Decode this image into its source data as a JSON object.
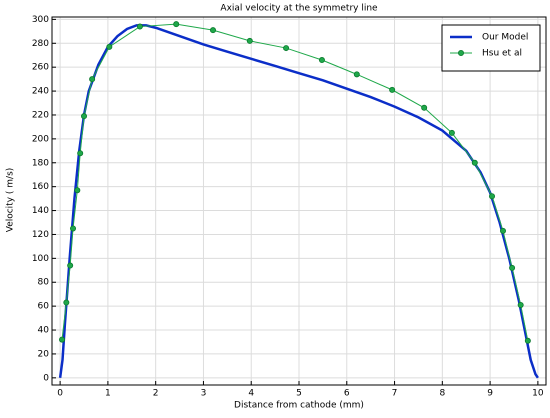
{
  "chart_data": {
    "type": "line",
    "title": "Axial velocity at the symmetry line",
    "x_label": "Distance from cathode (mm)",
    "y_label": "Velocity ( m/s)",
    "xlim": [
      -0.17,
      10.17
    ],
    "ylim": [
      -6,
      302
    ],
    "xticks": [
      0,
      1,
      2,
      3,
      4,
      5,
      6,
      7,
      8,
      9,
      10
    ],
    "yticks": [
      0,
      20,
      40,
      60,
      80,
      100,
      120,
      140,
      160,
      180,
      200,
      220,
      240,
      260,
      280,
      300
    ],
    "grid": true,
    "legend": "top-right",
    "series": [
      {
        "name": "Our Model",
        "color": "#0b2ec8",
        "markers": false,
        "x": [
          0,
          0.05,
          0.1,
          0.2,
          0.3,
          0.4,
          0.5,
          0.6,
          0.8,
          1.0,
          1.2,
          1.4,
          1.6,
          1.8,
          2.0,
          2.5,
          3,
          3.5,
          4,
          4.5,
          5,
          5.5,
          6,
          6.5,
          7,
          7.5,
          8,
          8.5,
          8.8,
          9,
          9.2,
          9.4,
          9.6,
          9.75,
          9.85,
          9.95,
          10
        ],
        "values": [
          0,
          15,
          45,
          100,
          150,
          190,
          220,
          240,
          262,
          277,
          286,
          292,
          295,
          295,
          293,
          286,
          279,
          273,
          267,
          261,
          255,
          249,
          242,
          235,
          227,
          218,
          207,
          190,
          172,
          155,
          130,
          100,
          65,
          35,
          15,
          3,
          0
        ]
      },
      {
        "name": "Hsu et al",
        "color": "#1fa84a",
        "markers": true,
        "x": [
          0.04,
          0.13,
          0.21,
          0.27,
          0.36,
          0.42,
          0.5,
          0.67,
          1.03,
          1.67,
          2.43,
          3.2,
          3.97,
          4.73,
          5.48,
          6.21,
          6.95,
          7.62,
          8.2,
          8.68,
          9.04,
          9.27,
          9.46,
          9.64,
          9.79
        ],
        "values": [
          32,
          63,
          94,
          125,
          157,
          188,
          219,
          250,
          277,
          294,
          296,
          291,
          282,
          276,
          266,
          254,
          241,
          226,
          205,
          180,
          152,
          123,
          92,
          61,
          31
        ]
      }
    ]
  }
}
